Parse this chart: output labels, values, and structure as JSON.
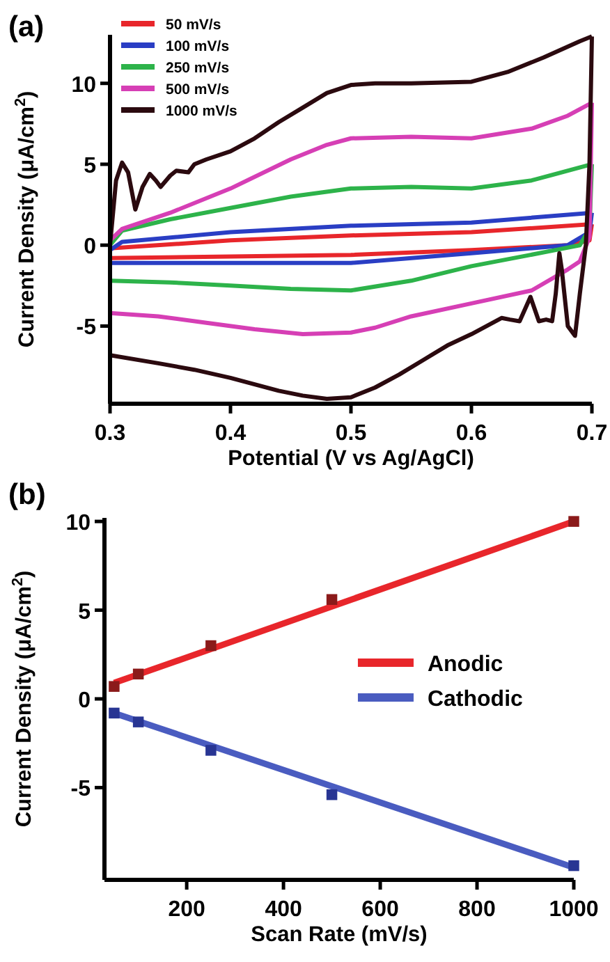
{
  "chart_data": [
    {
      "type": "line",
      "title": "(a)",
      "xlabel": "Potential (V vs Ag/AgCl)",
      "ylabel": "Current Density (μA/cm$^{2}$)",
      "xlim": [
        0.3,
        0.7
      ],
      "xticks": [
        0.3,
        0.4,
        0.5,
        0.6,
        0.7
      ],
      "ylim": [
        -9.8,
        13
      ],
      "yticks": [
        -5,
        0,
        5,
        10
      ],
      "legend": "top left",
      "series": [
        {
          "name": "50 mV/s",
          "color": "#e8262b",
          "x": [
            0.3,
            0.4,
            0.5,
            0.6,
            0.7
          ],
          "values": [
            -0.2,
            0.3,
            0.6,
            0.8,
            1.3
          ]
        },
        {
          "color": "#e8262b",
          "x": [
            0.7,
            0.698,
            0.68,
            0.6,
            0.5,
            0.4,
            0.3
          ],
          "values": [
            1.3,
            0.3,
            0,
            -0.3,
            -0.6,
            -0.7,
            -0.8
          ]
        },
        {
          "name": "100 mV/s",
          "color": "#2a3ec4",
          "x": [
            0.3,
            0.31,
            0.4,
            0.5,
            0.6,
            0.7
          ],
          "values": [
            -0.3,
            0.2,
            0.8,
            1.2,
            1.4,
            2.0
          ]
        },
        {
          "color": "#2a3ec4",
          "x": [
            0.7,
            0.698,
            0.68,
            0.6,
            0.5,
            0.4,
            0.3
          ],
          "values": [
            2.0,
            0.8,
            0,
            -0.5,
            -1.1,
            -1.1,
            -1.1
          ]
        },
        {
          "name": "250 mV/s",
          "color": "#2db34a",
          "x": [
            0.3,
            0.31,
            0.35,
            0.4,
            0.45,
            0.5,
            0.55,
            0.6,
            0.65,
            0.7
          ],
          "values": [
            0,
            0.9,
            1.6,
            2.3,
            3.0,
            3.5,
            3.6,
            3.5,
            4.0,
            5.0
          ]
        },
        {
          "color": "#2db34a",
          "x": [
            0.7,
            0.698,
            0.69,
            0.67,
            0.6,
            0.55,
            0.5,
            0.45,
            0.4,
            0.35,
            0.3
          ],
          "values": [
            5.0,
            1.0,
            0,
            -0.3,
            -1.3,
            -2.2,
            -2.8,
            -2.7,
            -2.5,
            -2.3,
            -2.2
          ]
        },
        {
          "name": "500 mV/s",
          "color": "#d63fb5",
          "x": [
            0.3,
            0.31,
            0.35,
            0.4,
            0.45,
            0.48,
            0.5,
            0.55,
            0.6,
            0.65,
            0.68,
            0.7
          ],
          "values": [
            0.3,
            1.0,
            2.0,
            3.5,
            5.3,
            6.2,
            6.6,
            6.7,
            6.6,
            7.2,
            8.0,
            8.8
          ]
        },
        {
          "color": "#d63fb5",
          "x": [
            0.7,
            0.698,
            0.69,
            0.68,
            0.65,
            0.6,
            0.55,
            0.52,
            0.5,
            0.46,
            0.42,
            0.38,
            0.34,
            0.3
          ],
          "values": [
            8.8,
            0.5,
            -1.0,
            -1.5,
            -2.8,
            -3.6,
            -4.4,
            -5.1,
            -5.4,
            -5.5,
            -5.2,
            -4.8,
            -4.4,
            -4.2
          ]
        },
        {
          "name": "1000 mV/s",
          "color": "#2b0a0f",
          "x": [
            0.3,
            0.305,
            0.31,
            0.315,
            0.321,
            0.327,
            0.333,
            0.338,
            0.342,
            0.35,
            0.355,
            0.365,
            0.37,
            0.38,
            0.4,
            0.42,
            0.44,
            0.46,
            0.48,
            0.5,
            0.52,
            0.55,
            0.6,
            0.63,
            0.66,
            0.69,
            0.7
          ],
          "values": [
            0,
            4.0,
            5.1,
            4.5,
            2.2,
            3.6,
            4.4,
            4.0,
            3.6,
            4.3,
            4.6,
            4.5,
            5.0,
            5.3,
            5.8,
            6.6,
            7.6,
            8.5,
            9.4,
            9.9,
            10.0,
            10.0,
            10.1,
            10.7,
            11.6,
            12.6,
            12.9
          ]
        },
        {
          "color": "#2b0a0f",
          "x": [
            0.7,
            0.698,
            0.695,
            0.69,
            0.686,
            0.68,
            0.675,
            0.673,
            0.67,
            0.667,
            0.662,
            0.656,
            0.649,
            0.64,
            0.632,
            0.625,
            0.6,
            0.58,
            0.56,
            0.54,
            0.52,
            0.5,
            0.48,
            0.46,
            0.44,
            0.42,
            0.4,
            0.37,
            0.34,
            0.3
          ],
          "values": [
            12.9,
            5,
            0,
            -3,
            -5.6,
            -5.0,
            -1.5,
            -0.5,
            -3,
            -4.7,
            -4.6,
            -4.7,
            -3.2,
            -4.7,
            -4.6,
            -4.5,
            -5.5,
            -6.2,
            -7.1,
            -8.0,
            -8.8,
            -9.4,
            -9.5,
            -9.3,
            -9.0,
            -8.6,
            -8.2,
            -7.7,
            -7.3,
            -6.8
          ]
        }
      ]
    },
    {
      "type": "scatter",
      "title": "(b)",
      "xlabel": "Scan Rate (mV/s)",
      "ylabel": "Current Density (μA/cm$^{2}$)",
      "xlim": [
        30,
        1000
      ],
      "xticks": [
        200,
        400,
        600,
        800,
        1000
      ],
      "ylim": [
        -10.2,
        10.2
      ],
      "yticks": [
        -5,
        0,
        5,
        10
      ],
      "legend": "right",
      "series": [
        {
          "marker": "square",
          "color": "#8b1a1a",
          "x": [
            50,
            100,
            250,
            500,
            1000
          ],
          "values": [
            0.7,
            1.4,
            3.0,
            5.6,
            10.0
          ]
        },
        {
          "marker": "square",
          "color": "#283593",
          "x": [
            50,
            100,
            250,
            500,
            1000
          ],
          "values": [
            -0.8,
            -1.3,
            -2.9,
            -5.4,
            -9.4
          ]
        },
        {
          "type": "line",
          "name": "Anodic",
          "color": "#e8262b",
          "x": [
            50,
            1000
          ],
          "values": [
            0.9,
            10.0
          ]
        },
        {
          "type": "line",
          "name": "Cathodic",
          "color": "#4a5cc0",
          "x": [
            50,
            1000
          ],
          "values": [
            -0.8,
            -9.5
          ]
        }
      ]
    }
  ]
}
